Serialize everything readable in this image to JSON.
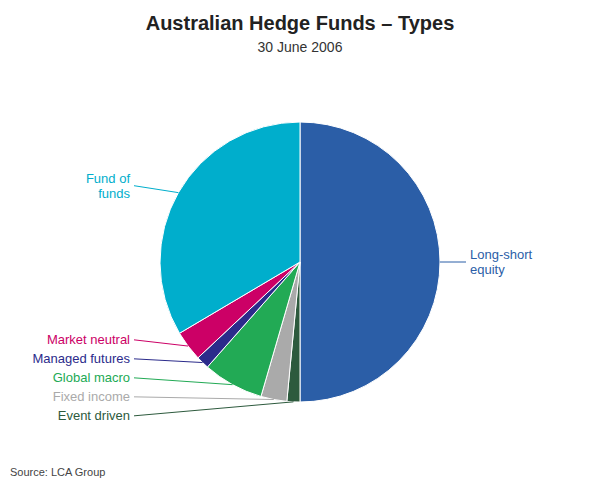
{
  "chart_data": {
    "type": "pie",
    "title": "Australian Hedge Funds – Types",
    "subtitle": "30 June 2006",
    "source": "Source: LCA Group",
    "categories": [
      "Long-short\nequity",
      "Event driven",
      "Fixed income",
      "Global macro",
      "Managed futures",
      "Market neutral",
      "Fund of\nfunds"
    ],
    "values": [
      50,
      1.5,
      3.0,
      7.0,
      1.5,
      3.5,
      33.5
    ],
    "colors": [
      "#2B5EA7",
      "#2D5A3D",
      "#AAAAAA",
      "#22AA55",
      "#2B2B8B",
      "#CC0066",
      "#00AECC"
    ]
  }
}
